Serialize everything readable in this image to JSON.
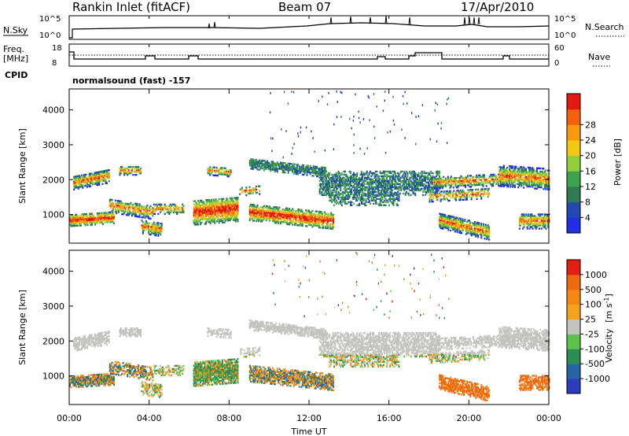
{
  "header": {
    "station": "Rankin Inlet (fitACF)",
    "beam": "Beam 07",
    "date": "17/Apr/2010"
  },
  "strip_panels": {
    "nsky_label": "N.Sky",
    "nsky_ticks": [
      "10^5",
      "10^0"
    ],
    "nsearch_label": "N.Search",
    "nsearch_ticks": [
      "10^5",
      "10^0"
    ],
    "freq_label": "Freq.",
    "freq_unit": "[MHz]",
    "freq_ticks": [
      "18",
      "8"
    ],
    "nave_label": "Nave",
    "nave_ticks": [
      "60",
      "0"
    ],
    "cpid_label": "CPID",
    "cpid_value": "normalsound (fast) -157"
  },
  "chart_data": [
    {
      "type": "heatmap",
      "panel": "power",
      "ylabel": "Slant Range [km]",
      "xlabel": "",
      "ylim": [
        180,
        4600
      ],
      "xlim": [
        0,
        24
      ],
      "y_ticks": [
        1000,
        2000,
        3000,
        4000
      ],
      "y_tick_labels": [
        "1000",
        "2000",
        "3000",
        "4000"
      ],
      "colorbar": {
        "label": "Power [dB]",
        "tick_labels": [
          "4",
          "8",
          "12",
          "16",
          "20",
          "24",
          "28"
        ],
        "colors": [
          "#1f2fe6",
          "#2448b3",
          "#2e7b55",
          "#3ea24f",
          "#8fcf3a",
          "#f2c812",
          "#f59a12",
          "#f3610d",
          "#e31a0d"
        ]
      }
    },
    {
      "type": "heatmap",
      "panel": "velocity",
      "ylabel": "Slant Range [km]",
      "xlabel": "Time UT",
      "ylim": [
        180,
        4600
      ],
      "xlim": [
        0,
        24
      ],
      "y_ticks": [
        1000,
        2000,
        3000,
        4000
      ],
      "y_tick_labels": [
        "1000",
        "2000",
        "3000",
        "4000"
      ],
      "x_ticks": [
        0,
        4,
        8,
        12,
        16,
        20,
        24
      ],
      "x_tick_labels": [
        "00:00",
        "04:00",
        "08:00",
        "12:00",
        "16:00",
        "20:00",
        "00:00"
      ],
      "colorbar": {
        "label": "Velocity",
        "unit": "[m s",
        "unit_sup": "-1",
        "unit_close": "]",
        "tick_labels": [
          "1000",
          "500",
          "100",
          "25",
          "-25",
          "-100",
          "-500",
          "-1000"
        ],
        "colors": [
          "#2b3dbd",
          "#2565a4",
          "#2e8d55",
          "#5cc24a",
          "#c3c3c0",
          "#f5a31e",
          "#f38814",
          "#ee6a10",
          "#e31f12"
        ]
      }
    }
  ]
}
